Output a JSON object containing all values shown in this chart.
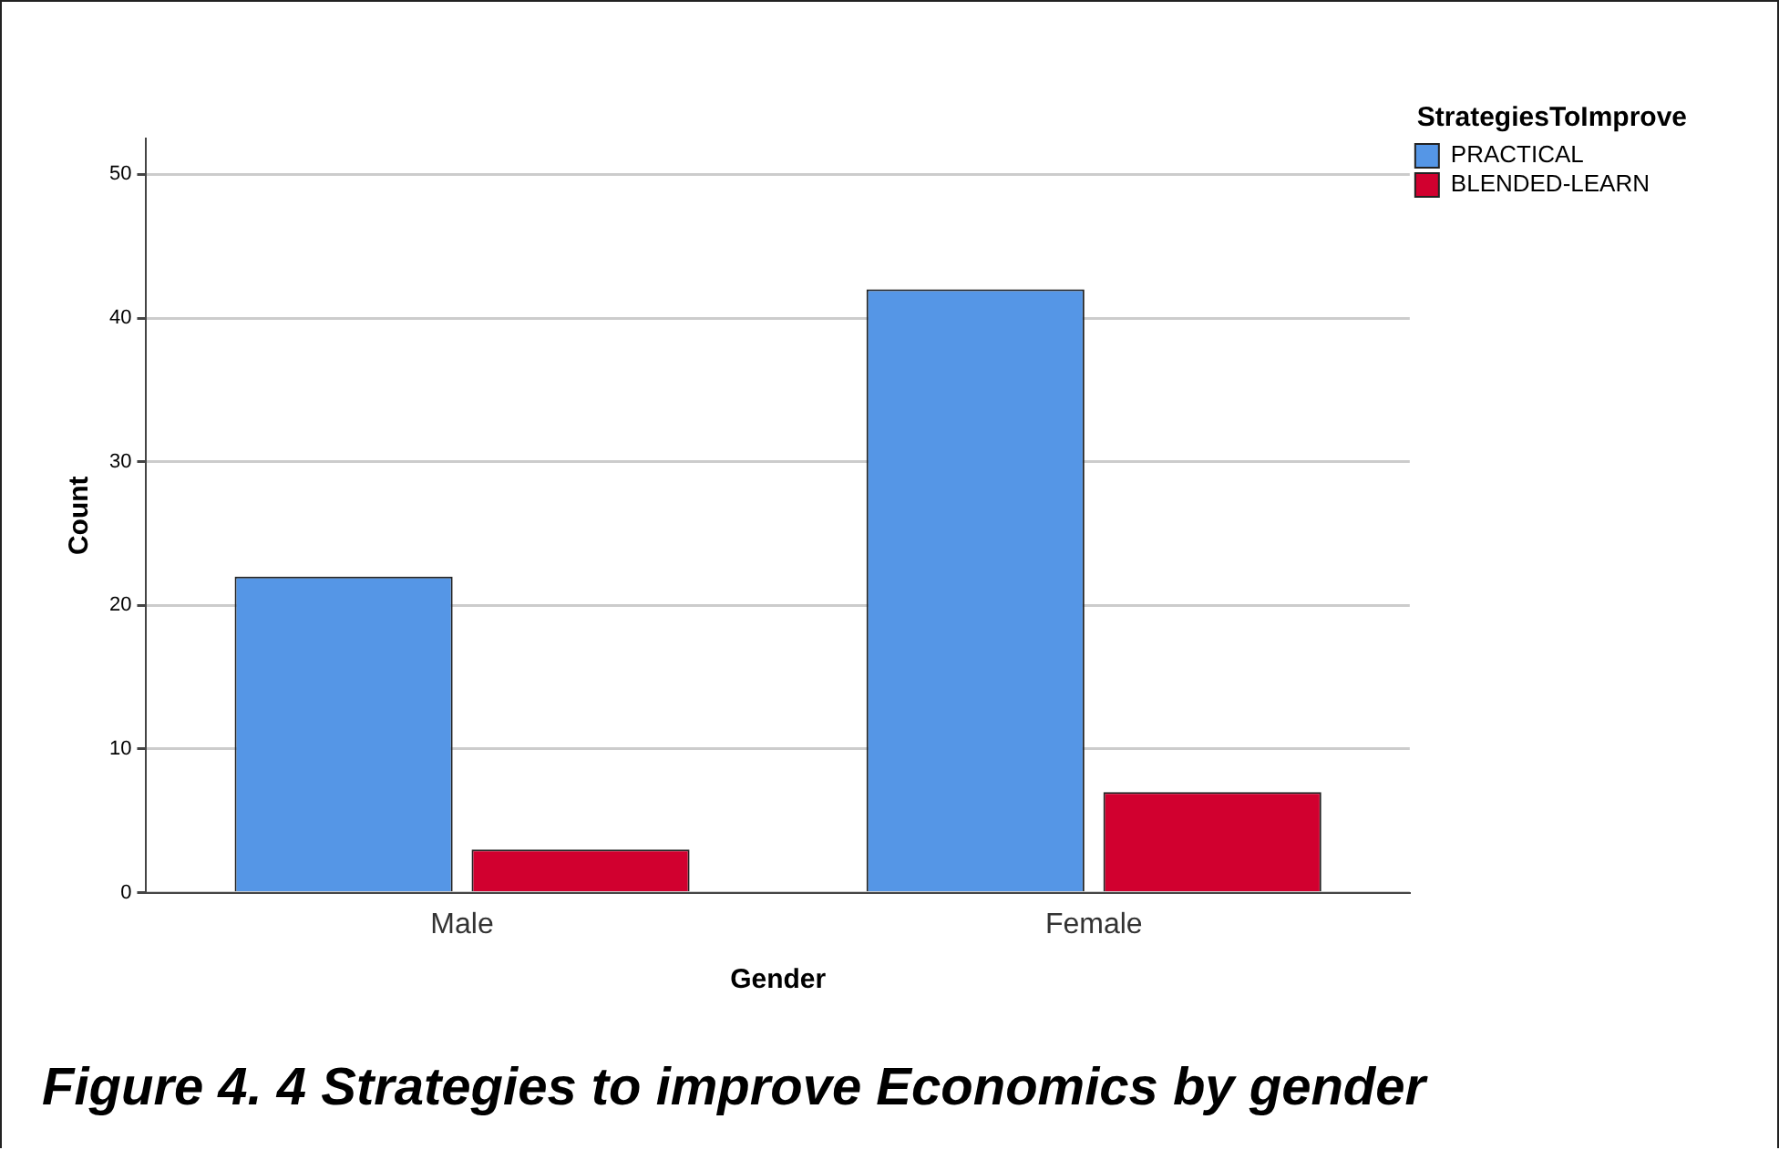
{
  "chart_data": {
    "type": "bar",
    "xlabel": "Gender",
    "ylabel": "Count",
    "legend_title": "StrategiesToImprove",
    "categories": [
      "Male",
      "Female"
    ],
    "series": [
      {
        "name": "PRACTICAL",
        "color": "#5596e6",
        "values": [
          22,
          42
        ]
      },
      {
        "name": "BLENDED-LEARN",
        "color": "#d1002f",
        "values": [
          3,
          7
        ]
      }
    ],
    "ylim": [
      0,
      52.5
    ],
    "yticks": [
      0,
      10,
      20,
      30,
      40,
      50
    ],
    "grid": "y",
    "legend": "top right",
    "annotations": [
      "Figure 4. 4 Strategies to improve Economics by gender"
    ]
  }
}
